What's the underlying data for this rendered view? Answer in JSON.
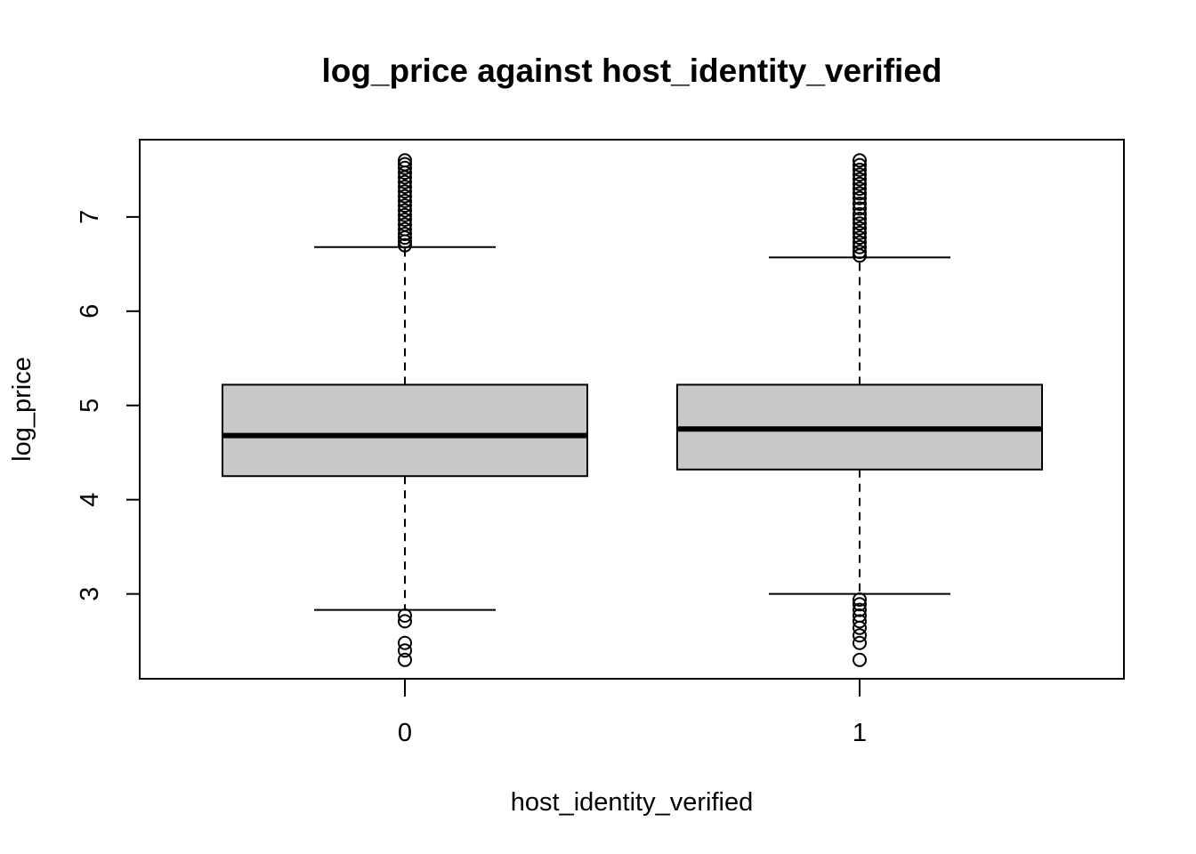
{
  "chart_data": {
    "type": "boxplot",
    "title": "log_price against host_identity_verified",
    "xlabel": "host_identity_verified",
    "ylabel": "log_price",
    "categories": [
      "0",
      "1"
    ],
    "y_ticks": [
      "3",
      "4",
      "5",
      "6",
      "7"
    ],
    "ylim": [
      2.1,
      7.82
    ],
    "grid": false,
    "box_fill": "#c8c8c8",
    "boxes": [
      {
        "category": "0",
        "whisker_low": 2.83,
        "q1": 4.25,
        "median": 4.68,
        "q3": 5.22,
        "whisker_high": 6.68,
        "outliers_high": [
          6.7,
          6.74,
          6.78,
          6.82,
          6.87,
          6.92,
          6.97,
          7.02,
          7.07,
          7.12,
          7.17,
          7.22,
          7.27,
          7.32,
          7.37,
          7.42,
          7.47,
          7.52,
          7.56,
          7.6
        ],
        "outliers_low": [
          2.77,
          2.71,
          2.48,
          2.4,
          2.3
        ]
      },
      {
        "category": "1",
        "whisker_low": 3.0,
        "q1": 4.32,
        "median": 4.75,
        "q3": 5.22,
        "whisker_high": 6.57,
        "outliers_high": [
          6.59,
          6.63,
          6.68,
          6.73,
          6.78,
          6.83,
          6.88,
          6.93,
          6.98,
          7.03,
          7.09,
          7.14,
          7.2,
          7.25,
          7.3,
          7.35,
          7.4,
          7.45,
          7.5,
          7.55,
          7.6
        ],
        "outliers_low": [
          2.94,
          2.89,
          2.83,
          2.77,
          2.71,
          2.64,
          2.56,
          2.48,
          2.3
        ]
      }
    ]
  }
}
